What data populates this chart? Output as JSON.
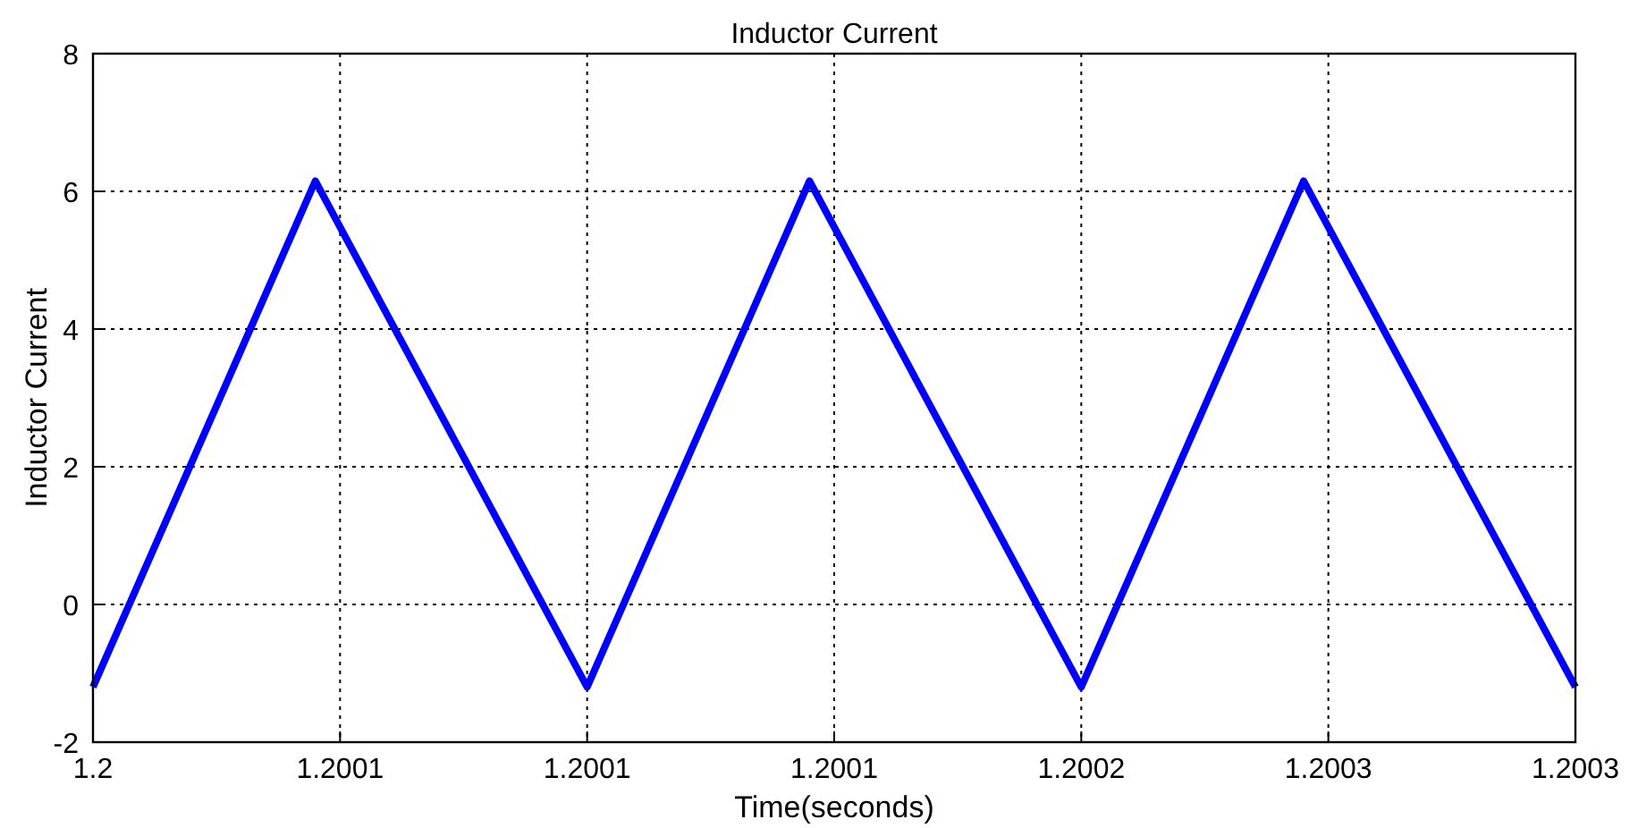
{
  "chart_data": {
    "type": "line",
    "title": "Inductor Current",
    "xlabel": "Time(seconds)",
    "ylabel": "Inductor Current",
    "x": [
      1.2,
      1.200045,
      1.2001,
      1.200145,
      1.2002,
      1.200245,
      1.2003
    ],
    "series": [
      {
        "color": "#0000ff",
        "values": [
          -1.2,
          6.15,
          -1.2,
          6.15,
          -1.2,
          6.15,
          -1.2
        ]
      }
    ],
    "xlim": [
      1.2,
      1.2003
    ],
    "xticks": [
      {
        "value": 1.2,
        "label": "1.2"
      },
      {
        "value": 1.20005,
        "label": "1.2001"
      },
      {
        "value": 1.2001,
        "label": "1.2001"
      },
      {
        "value": 1.20015,
        "label": "1.2001"
      },
      {
        "value": 1.2002,
        "label": "1.2002"
      },
      {
        "value": 1.20025,
        "label": "1.2003"
      },
      {
        "value": 1.2003,
        "label": "1.2003"
      }
    ],
    "ylim": [
      -2,
      8
    ],
    "yticks": [
      -2,
      0,
      2,
      4,
      6,
      8
    ],
    "grid": true,
    "marker": "none",
    "line_style": "solid"
  }
}
